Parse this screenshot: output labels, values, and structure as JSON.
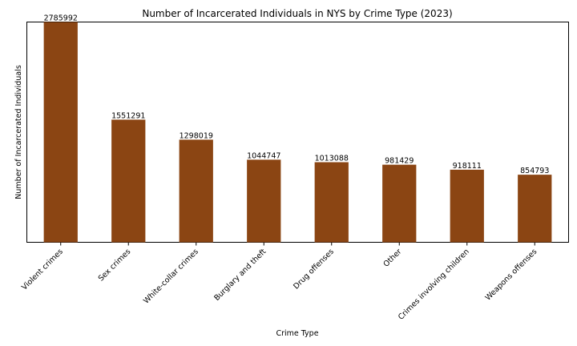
{
  "chart_data": {
    "type": "bar",
    "title": "Number of Incarcerated Individuals in NYS by Crime Type (2023)",
    "xlabel": "Crime Type",
    "ylabel": "Number of Incarcerated Individuals",
    "categories": [
      "Violent crimes",
      "Sex crimes",
      "White-collar crimes",
      "Burglary and theft",
      "Drug offenses",
      "Other",
      "Crimes involving children",
      "Weapons offenses"
    ],
    "values": [
      2785992,
      1551291,
      1298019,
      1044747,
      1013088,
      981429,
      918111,
      854793
    ],
    "value_labels": [
      "2785992",
      "1551291",
      "1298019",
      "1044747",
      "1013088",
      "981429",
      "918111",
      "854793"
    ],
    "ylim": [
      0,
      2785992
    ],
    "y_ticks_shown": false,
    "grid": false,
    "legend": "none",
    "bar_color": "#8B4513",
    "tick_label_rotation": -45
  }
}
